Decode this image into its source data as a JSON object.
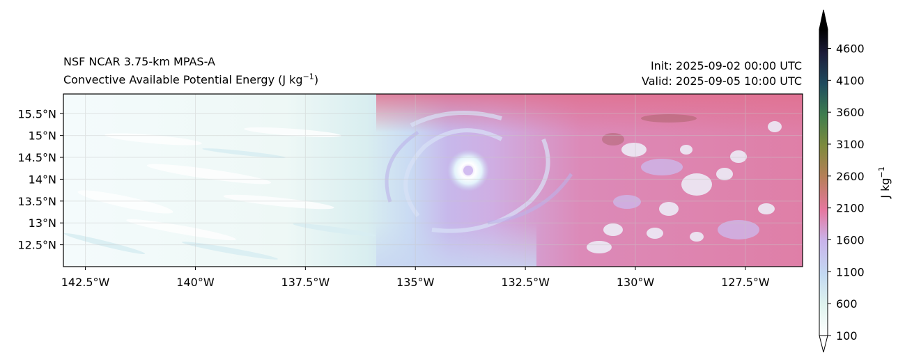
{
  "title": {
    "model": "NSF NCAR 3.75-km MPAS-A",
    "variable": "Convective Available Potential Energy (J kg",
    "variable_sup": "−1",
    "variable_close": ")",
    "init": "Init: 2025-09-02 00:00 UTC",
    "valid": "Valid: 2025-09-05 10:00 UTC"
  },
  "map": {
    "lon_range": [
      -143.0,
      -126.2
    ],
    "lat_range": [
      12.0,
      15.95
    ],
    "lon_ticks": [
      {
        "value": -142.5,
        "label": "142.5°W"
      },
      {
        "value": -140.0,
        "label": "140°W"
      },
      {
        "value": -137.5,
        "label": "137.5°W"
      },
      {
        "value": -135.0,
        "label": "135°W"
      },
      {
        "value": -132.5,
        "label": "132.5°W"
      },
      {
        "value": -130.0,
        "label": "130°W"
      },
      {
        "value": -127.5,
        "label": "127.5°W"
      }
    ],
    "lat_ticks": [
      {
        "value": 12.5,
        "label": "12.5°N"
      },
      {
        "value": 13.0,
        "label": "13°N"
      },
      {
        "value": 13.5,
        "label": "13.5°N"
      },
      {
        "value": 14.0,
        "label": "14°N"
      },
      {
        "value": 14.5,
        "label": "14.5°N"
      },
      {
        "value": 15.0,
        "label": "15°N"
      },
      {
        "value": 15.5,
        "label": "15.5°N"
      }
    ],
    "cyclone_center": {
      "lon": -133.8,
      "lat": 14.2
    }
  },
  "colorbar": {
    "label": "J kg",
    "label_sup": "−1",
    "range": [
      100,
      4900
    ],
    "ticks": [
      {
        "value": 100,
        "label": "100"
      },
      {
        "value": 600,
        "label": "600"
      },
      {
        "value": 1100,
        "label": "1100"
      },
      {
        "value": 1600,
        "label": "1600"
      },
      {
        "value": 2100,
        "label": "2100"
      },
      {
        "value": 2600,
        "label": "2600"
      },
      {
        "value": 3100,
        "label": "3100"
      },
      {
        "value": 3600,
        "label": "3600"
      },
      {
        "value": 4100,
        "label": "4100"
      },
      {
        "value": 4600,
        "label": "4600"
      }
    ],
    "colors": [
      "#ffffff",
      "#dff3ee",
      "#c3d9f2",
      "#c9b3ea",
      "#e6779f",
      "#b57f57",
      "#7d8a3c",
      "#3e7d4e",
      "#1f4c5e",
      "#1c1c3a",
      "#000000"
    ]
  }
}
